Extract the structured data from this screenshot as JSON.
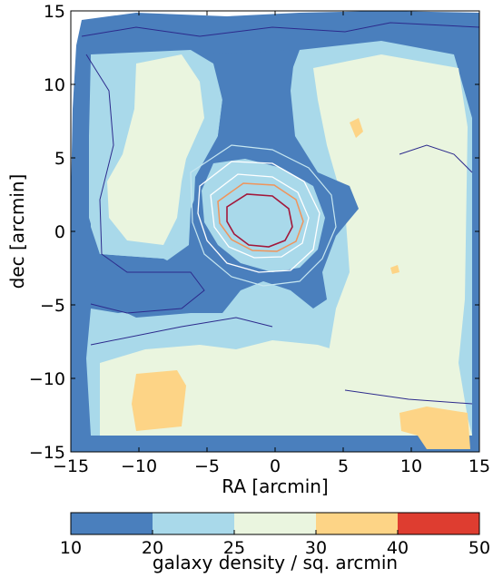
{
  "chart_data": {
    "type": "heatmap",
    "xlabel": "RA [arcmin]",
    "ylabel": "dec [arcmin]",
    "xlim": [
      -15,
      15
    ],
    "ylim": [
      -15,
      15
    ],
    "x_ticks": [
      -15,
      -10,
      -5,
      0,
      5,
      10,
      15
    ],
    "y_ticks": [
      -15,
      -10,
      -5,
      0,
      5,
      10,
      15
    ],
    "x_tick_labels": [
      "−15",
      "−10",
      "−5",
      "0",
      "5",
      "10",
      "15"
    ],
    "y_tick_labels": [
      "−15",
      "−10",
      "−5",
      "0",
      "5",
      "10",
      "15"
    ],
    "colorbar": {
      "label": "galaxy density / sq. arcmin",
      "boundaries": [
        10,
        20,
        25,
        30,
        40,
        50
      ],
      "tick_labels": [
        "10",
        "20",
        "25",
        "30",
        "40",
        "50"
      ],
      "colors": [
        "#4a7fbd",
        "#a9d9ea",
        "#eaf5df",
        "#fdd486",
        "#de3d30"
      ]
    },
    "regions": [
      {
        "level": "10-20",
        "description": "outer frame and central cross"
      },
      {
        "level": "20-25",
        "description": "broad light-blue lobes"
      },
      {
        "level": "25-30",
        "description": "pale green interior"
      },
      {
        "level": "30-40",
        "description": "small orange patches lower-left, lower-right, upper right"
      }
    ],
    "contours": [
      {
        "color": "#2c2a8c",
        "description": "dark blue outer contours"
      },
      {
        "color": "#c6e6f0",
        "description": "light blue/white contours around center"
      },
      {
        "color": "#ffffff",
        "description": "white contours around central peak"
      },
      {
        "color": "#f0945a",
        "description": "orange contour around central peak"
      },
      {
        "color": "#a3173a",
        "description": "crimson innermost contour around center (approx. -3..1, -1..2)"
      }
    ]
  }
}
